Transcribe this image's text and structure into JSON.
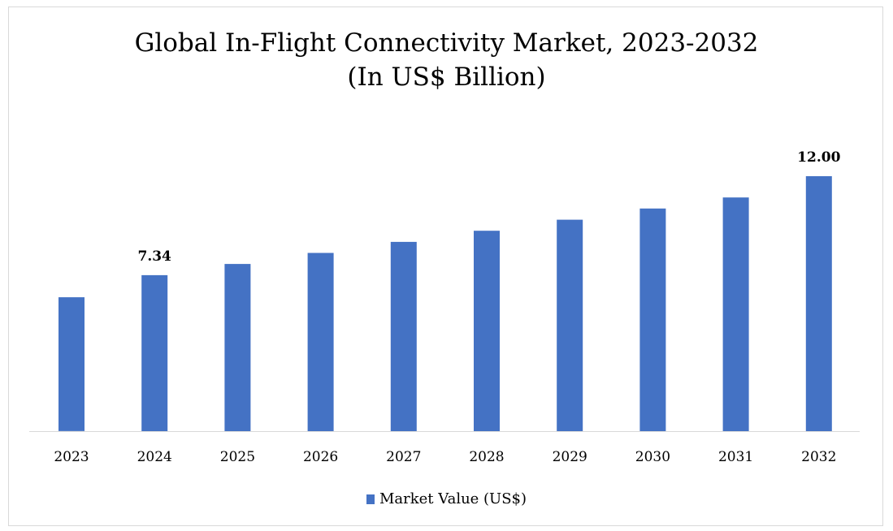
{
  "chart_data": {
    "type": "bar",
    "title": "Global In-Flight Connectivity Market, 2023-2032",
    "subtitle": "(In US$ Billion)",
    "categories": [
      "2023",
      "2024",
      "2025",
      "2026",
      "2027",
      "2028",
      "2029",
      "2030",
      "2031",
      "2032"
    ],
    "series": [
      {
        "name": "Market Value (US$)",
        "values": [
          6.3,
          7.34,
          7.87,
          8.39,
          8.91,
          9.43,
          9.95,
          10.48,
          11.0,
          12.0
        ],
        "color": "#4472c4"
      }
    ],
    "data_labels": [
      {
        "category": "2024",
        "text": "7.34"
      },
      {
        "category": "2032",
        "text": "12.00"
      }
    ],
    "ylim": [
      0,
      12
    ],
    "grid": false,
    "legend_position": "bottom"
  }
}
